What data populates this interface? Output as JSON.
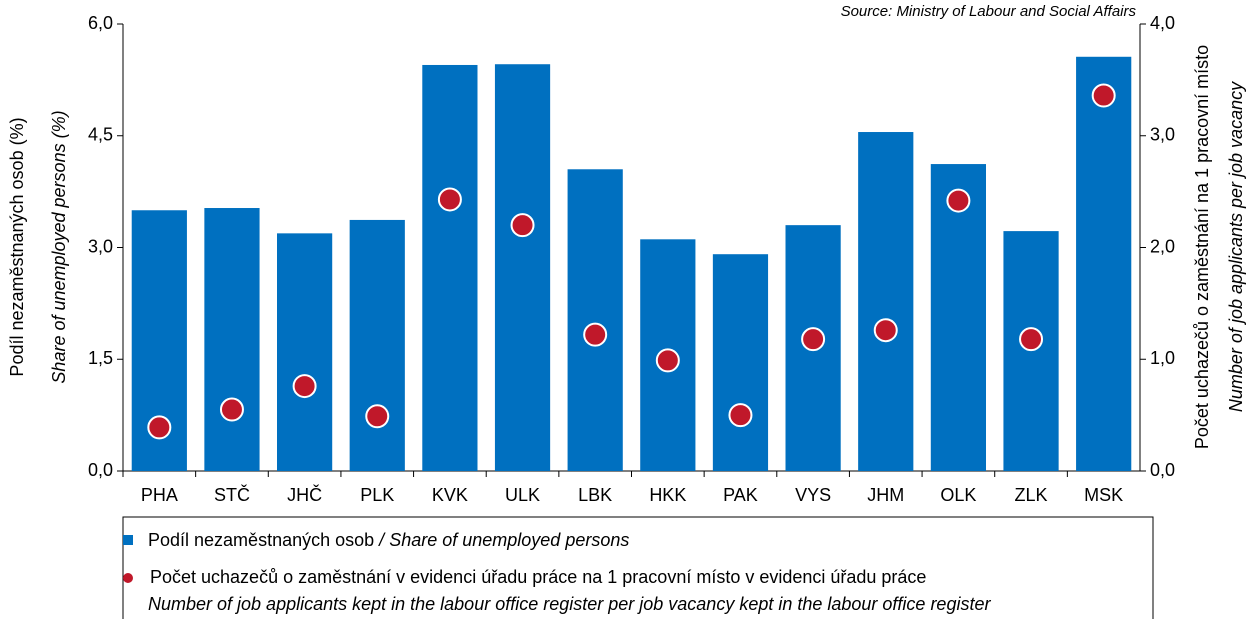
{
  "chart_data": {
    "type": "bar",
    "source": "Source: Ministry of Labour and Social Affairs",
    "ylabel": "Podíl nezaměstnaných osob (%)",
    "ylabel_en": "Share of unemployed persons (%)",
    "y2label": "Počet uchazečů o zaměstnání na 1 pracovní místo",
    "y2label_en": "Number of job applicants per job vacancy",
    "legend_separator": "/",
    "categories": [
      "PHA",
      "STČ",
      "JHČ",
      "PLK",
      "KVK",
      "ULK",
      "LBK",
      "HKK",
      "PAK",
      "VYS",
      "JHM",
      "OLK",
      "ZLK",
      "MSK"
    ],
    "series": [
      {
        "name": "Podíl nezaměstnaných osob",
        "name_en": "Share of unemployed persons",
        "color": "#0070c0",
        "values": [
          3.5,
          3.53,
          3.19,
          3.37,
          5.45,
          5.46,
          4.05,
          3.11,
          2.91,
          3.3,
          4.55,
          4.12,
          3.22,
          5.56
        ]
      },
      {
        "name": "Počet uchazečů o zaměstnání v evidenci úřadu práce na 1 pracovní místo v evidenci úřadu práce",
        "name_en": "Number of job applicants kept in the labour office register per job vacancy kept in the labour office register",
        "color": "#c0182a",
        "axis": "y2",
        "values": [
          0.39,
          0.55,
          0.76,
          0.49,
          2.43,
          2.2,
          1.22,
          0.99,
          0.5,
          1.18,
          1.26,
          2.42,
          1.18,
          3.36
        ]
      }
    ],
    "ylim": [
      0,
      6
    ],
    "yticks": [
      {
        "value": 0,
        "label": "0,0"
      },
      {
        "value": 1.5,
        "label": "1,5"
      },
      {
        "value": 3,
        "label": "3,0"
      },
      {
        "value": 4.5,
        "label": "4,5"
      },
      {
        "value": 6,
        "label": "6,0"
      }
    ],
    "y2lim": [
      0,
      4
    ],
    "y2ticks": [
      {
        "value": 0,
        "label": "0,0"
      },
      {
        "value": 1,
        "label": "1,0"
      },
      {
        "value": 2,
        "label": "2,0"
      },
      {
        "value": 3,
        "label": "3,0"
      },
      {
        "value": 4,
        "label": "4,0"
      }
    ]
  }
}
